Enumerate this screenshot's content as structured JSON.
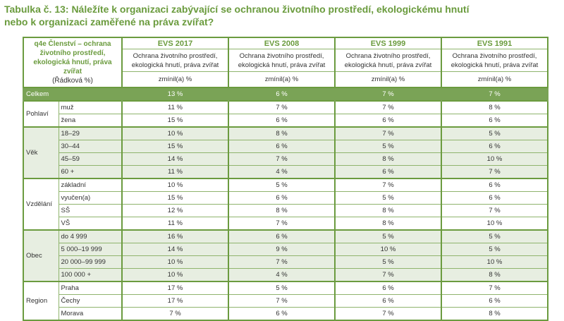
{
  "title_line1": "Tabulka č. 13: Náležíte k organizaci zabývající se ochranou životního prostředí, ekologickému hnutí",
  "title_line2": "nebo k organizaci zaměřené na práva zvířat?",
  "corner": {
    "label": "q4e Členství – ochrana životního prostředí, ekologická hnutí, práva zvířat",
    "note": "(Řádková %)"
  },
  "columns": [
    {
      "wave": "EVS 2017",
      "item": "Ochrana životního prostředí, ekologická hnutí, práva zvířat",
      "unit": "zmínil(a) %"
    },
    {
      "wave": "EVS 2008",
      "item": "Ochrana životního prostředí, ekologická hnutí, práva zvířat",
      "unit": "zmínil(a) %"
    },
    {
      "wave": "EVS 1999",
      "item": "Ochrana životního prostředí, ekologická hnutí, práva zvířat",
      "unit": "zmínil(a) %"
    },
    {
      "wave": "EVS 1991",
      "item": "Ochrana životního prostředí, ekologická hnutí, práva zvířat",
      "unit": "zmínil(a) %"
    }
  ],
  "total": {
    "label": "Celkem",
    "values": [
      "13 %",
      "6 %",
      "7 %",
      "7 %"
    ]
  },
  "groups": [
    {
      "label": "Pohlaví",
      "shaded": false,
      "rows": [
        {
          "label": "muž",
          "values": [
            "11 %",
            "7 %",
            "7 %",
            "8 %"
          ]
        },
        {
          "label": "žena",
          "values": [
            "15 %",
            "6 %",
            "6 %",
            "6 %"
          ]
        }
      ]
    },
    {
      "label": "Věk",
      "shaded": true,
      "rows": [
        {
          "label": "18–29",
          "values": [
            "10 %",
            "8 %",
            "7 %",
            "5 %"
          ]
        },
        {
          "label": "30–44",
          "values": [
            "15 %",
            "6 %",
            "5 %",
            "6 %"
          ]
        },
        {
          "label": "45–59",
          "values": [
            "14 %",
            "7 %",
            "8 %",
            "10 %"
          ]
        },
        {
          "label": "60 +",
          "values": [
            "11 %",
            "4 %",
            "6 %",
            "7 %"
          ]
        }
      ]
    },
    {
      "label": "Vzdělání",
      "shaded": false,
      "rows": [
        {
          "label": "základní",
          "values": [
            "10 %",
            "5 %",
            "7 %",
            "6 %"
          ]
        },
        {
          "label": "vyučen(a)",
          "values": [
            "15 %",
            "6 %",
            "5 %",
            "6 %"
          ]
        },
        {
          "label": "SŠ",
          "values": [
            "12 %",
            "8 %",
            "8 %",
            "7 %"
          ]
        },
        {
          "label": "VŠ",
          "values": [
            "11 %",
            "7 %",
            "8 %",
            "10 %"
          ]
        }
      ]
    },
    {
      "label": "Obec",
      "shaded": true,
      "rows": [
        {
          "label": "do 4 999",
          "values": [
            "16 %",
            "6 %",
            "5 %",
            "5 %"
          ]
        },
        {
          "label": "5 000–19 999",
          "values": [
            "14 %",
            "9 %",
            "10 %",
            "5 %"
          ]
        },
        {
          "label": "20 000–99 999",
          "values": [
            "10 %",
            "7 %",
            "5 %",
            "10 %"
          ]
        },
        {
          "label": "100 000 +",
          "values": [
            "10 %",
            "4 %",
            "7 %",
            "8 %"
          ]
        }
      ]
    },
    {
      "label": "Region",
      "shaded": false,
      "rows": [
        {
          "label": "Praha",
          "values": [
            "17 %",
            "5 %",
            "6 %",
            "7 %"
          ]
        },
        {
          "label": "Čechy",
          "values": [
            "17 %",
            "7 %",
            "6 %",
            "6 %"
          ]
        },
        {
          "label": "Morava",
          "values": [
            "7 %",
            "6 %",
            "7 %",
            "8 %"
          ]
        }
      ]
    }
  ],
  "colors": {
    "accent": "#6b9b3f",
    "total_row": "#7aa356",
    "shaded_row": "#e7eee1"
  }
}
